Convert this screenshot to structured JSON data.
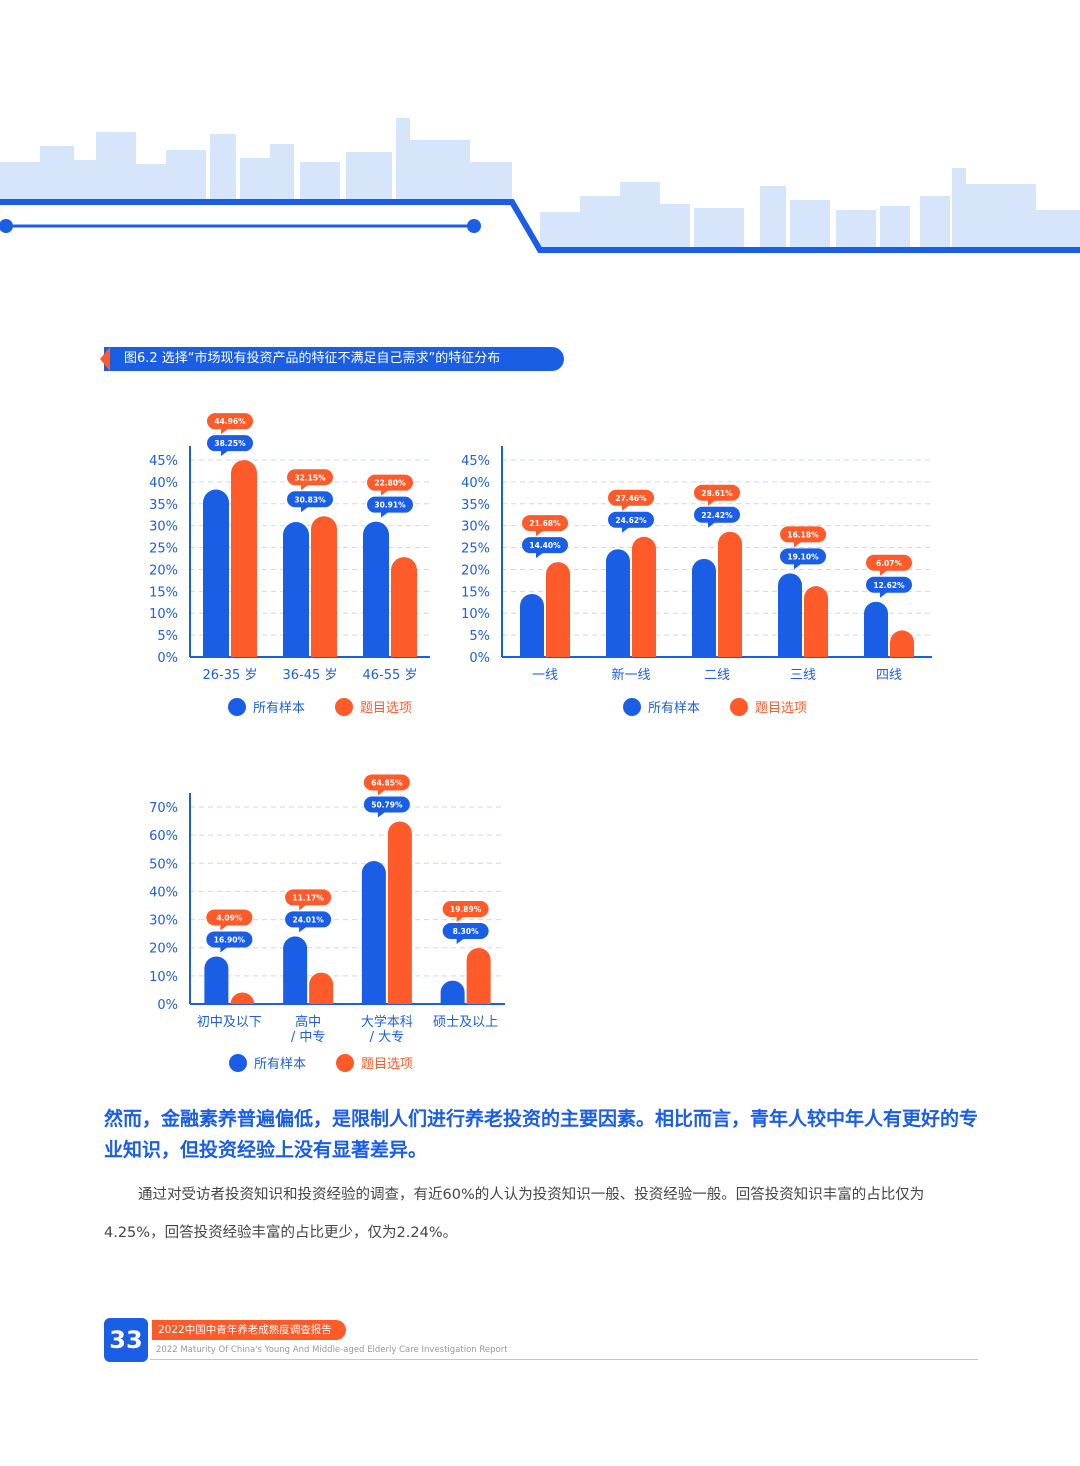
{
  "figure_title": "图6.2  选择“市场现有投资产品的特征不满足自己需求”的特征分布",
  "colors": {
    "blue": "#1a5ee6",
    "orange": "#ff5a2a",
    "grid": "#c9d9f5",
    "light_blue": "#d7e5fb"
  },
  "legend": {
    "all": "所有样本",
    "selected": "题目选项"
  },
  "chart_data": [
    {
      "type": "bar",
      "categories": [
        "26-35 岁",
        "36-45 岁",
        "46-55 岁"
      ],
      "series": [
        {
          "name": "所有样本",
          "values": [
            38.25,
            30.83,
            30.91
          ],
          "labels": [
            "38.25%",
            "30.83%",
            "30.91%"
          ]
        },
        {
          "name": "题目选项",
          "values": [
            44.96,
            32.15,
            22.8
          ],
          "labels": [
            "44.96%",
            "32.15%",
            "22.80%"
          ]
        }
      ],
      "ylim": [
        0,
        45
      ],
      "yticks": [
        "0%",
        "5%",
        "10%",
        "15%",
        "20%",
        "25%",
        "30%",
        "35%",
        "40%",
        "45%"
      ],
      "legend_position": "bottom",
      "grid": true
    },
    {
      "type": "bar",
      "categories": [
        "一线",
        "新一线",
        "二线",
        "三线",
        "四线"
      ],
      "series": [
        {
          "name": "所有样本",
          "values": [
            14.4,
            24.62,
            22.42,
            19.1,
            12.62
          ],
          "labels": [
            "14.40%",
            "24.62%",
            "22.42%",
            "19.10%",
            "12.62%"
          ]
        },
        {
          "name": "题目选项",
          "values": [
            21.68,
            27.46,
            28.61,
            16.18,
            6.07
          ],
          "labels": [
            "21.68%",
            "27.46%",
            "28.61%",
            "16.18%",
            "6.07%"
          ]
        }
      ],
      "ylim": [
        0,
        45
      ],
      "yticks": [
        "0%",
        "5%",
        "10%",
        "15%",
        "20%",
        "25%",
        "30%",
        "35%",
        "40%",
        "45%"
      ],
      "legend_position": "bottom",
      "grid": true
    },
    {
      "type": "bar",
      "categories": [
        "初中及以下",
        "高中 / 中专",
        "大学本科 / 大专",
        "硕士及以上"
      ],
      "series": [
        {
          "name": "所有样本",
          "values": [
            16.9,
            24.01,
            50.79,
            8.3
          ],
          "labels": [
            "16.90%",
            "24.01%",
            "50.79%",
            "8.30%"
          ]
        },
        {
          "name": "题目选项",
          "values": [
            4.09,
            11.17,
            64.85,
            19.89
          ],
          "labels": [
            "4.09%",
            "11.17%",
            "64.85%",
            "19.89%"
          ]
        }
      ],
      "ylim": [
        0,
        70
      ],
      "yticks": [
        "0%",
        "10%",
        "20%",
        "30%",
        "40%",
        "50%",
        "60%",
        "70%"
      ],
      "legend_position": "bottom",
      "grid": true
    }
  ],
  "headline": "然而，金融素养普遍偏低，是限制人们进行养老投资的主要因素。相比而言，青年人较中年人有更好的专业知识，但投资经验上没有显著差异。",
  "body": "通过对受访者投资知识和投资经验的调查，有近60%的人认为投资知识一般、投资经验一般。回答投资知识丰富的占比仅为4.25%，回答投资经验丰富的占比更少，仅为2.24%。",
  "footer": {
    "page_number": "33",
    "report_title": "2022中国中青年养老成熟度调查报告",
    "report_subtitle": "2022 Maturity Of China's Young And Middle-aged Elderly Care Investigation Report"
  }
}
